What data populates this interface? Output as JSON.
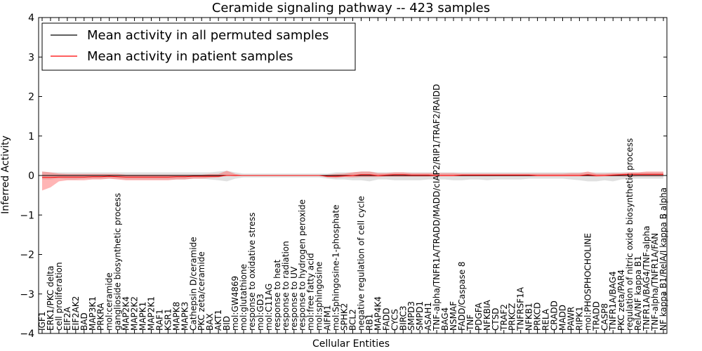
{
  "chart_data": {
    "type": "line",
    "title": "Ceramide signaling pathway -- 423 samples",
    "xlabel": "Cellular Entities",
    "ylabel": "Inferred Activity",
    "ylim": [
      -4,
      4
    ],
    "yticks": [
      -4,
      -3,
      -2,
      -1,
      0,
      1,
      2,
      3,
      4
    ],
    "legend_position": "top-left",
    "categories": [
      "IGF1",
      "ERK1/PKC delta",
      "cell proliferation",
      "EIF2A",
      "EIF2AK2",
      "BAD",
      "MAP3K1",
      "PRKRA",
      "mol:ceramide",
      "ganglioside biosynthetic process",
      "MAP2K4",
      "MAP2K2",
      "MAPK1",
      "MAP2K1",
      "RAF1",
      "KSR1",
      "MAPK8",
      "MAPK3",
      "Cathepsin D/ceramide",
      "PKC zeta/ceramide",
      "BAX",
      "AKT1",
      "BID",
      "mol:GW4869",
      "mol:glutathione",
      "response to oxidative stress",
      "mol:GD3",
      "mol:C11AG",
      "response to heat",
      "response to radiation",
      "response to UV",
      "response to hydrogen peroxide",
      "mol:free fatty acid",
      "mol:sphingosine",
      "AIFM1",
      "mol:Sphingosine-1-phosphate",
      "SPHK2",
      "BCL2",
      "negative regulation of cell cycle",
      "RB1",
      "MAP4K4",
      "FADD",
      "CYCS",
      "BIRC3",
      "SMPD3",
      "SMPD1",
      "ASAH1",
      "TNF-alpha/TNFR1A/TRADD/MADD/cIAP2/RIP1/TRAF2/RAIDD",
      "BAG4",
      "NSMAF",
      "FADD/Caspase 8",
      "TNF",
      "PDGFA",
      "NFKBIA",
      "CTSD",
      "TRAF2",
      "PRKCZ",
      "TNFRSF1A",
      "NFKB1",
      "PRKCD",
      "RELA",
      "CRADD",
      "MADD",
      "PAWR",
      "RIPK1",
      "mol:PHOSPHOCHOLINE",
      "TRADD",
      "CASP8",
      "TNFR1A/BAG4",
      "PKC zeta/PAR4",
      "regulation of nitric oxide biosynthetic process",
      "RelA/NF kappa B1",
      "TNFR1A/BAG4/TNF-alpha",
      "TNF-alpha/TNFR1A/FAN",
      "NF kappa B1/RelA/I kappa B alpha"
    ],
    "series": [
      {
        "name": "Mean activity in all permuted samples",
        "color": "#000000",
        "band_color": "#c8c8c8",
        "values": [
          0,
          0,
          0,
          0,
          0,
          0,
          0,
          0,
          0,
          0,
          0,
          0,
          0,
          0,
          0,
          0,
          0,
          0,
          0,
          0,
          0,
          0,
          0,
          0,
          0,
          0,
          0,
          0,
          0,
          0,
          0,
          0,
          0,
          0,
          0,
          0,
          0,
          0,
          0,
          0,
          0,
          0,
          0,
          0,
          0,
          0,
          0,
          0,
          0,
          0,
          0,
          0,
          0,
          0,
          0,
          0,
          0,
          0,
          0,
          0,
          0,
          0,
          0,
          0,
          0,
          0,
          0,
          0,
          0,
          0,
          0,
          0,
          0,
          0,
          0
        ],
        "lower": [
          -0.1,
          -0.1,
          -0.08,
          -0.1,
          -0.1,
          -0.08,
          -0.08,
          -0.08,
          -0.08,
          -0.08,
          -0.1,
          -0.1,
          -0.1,
          -0.1,
          -0.1,
          -0.1,
          -0.1,
          -0.1,
          -0.08,
          -0.08,
          -0.1,
          -0.12,
          -0.15,
          -0.08,
          -0.05,
          -0.05,
          -0.05,
          -0.05,
          -0.05,
          -0.05,
          -0.05,
          -0.05,
          -0.05,
          -0.05,
          -0.08,
          -0.1,
          -0.1,
          -0.12,
          -0.12,
          -0.15,
          -0.1,
          -0.1,
          -0.12,
          -0.12,
          -0.12,
          -0.12,
          -0.1,
          -0.1,
          -0.1,
          -0.12,
          -0.12,
          -0.1,
          -0.1,
          -0.12,
          -0.1,
          -0.1,
          -0.1,
          -0.1,
          -0.08,
          -0.08,
          -0.08,
          -0.08,
          -0.08,
          -0.1,
          -0.12,
          -0.15,
          -0.15,
          -0.12,
          -0.15,
          -0.1,
          -0.08,
          -0.08,
          -0.08,
          -0.08,
          -0.08
        ],
        "upper": [
          0.1,
          0.08,
          0.08,
          0.08,
          0.08,
          0.08,
          0.08,
          0.08,
          0.08,
          0.08,
          0.08,
          0.08,
          0.08,
          0.08,
          0.08,
          0.08,
          0.08,
          0.08,
          0.08,
          0.08,
          0.08,
          0.1,
          0.12,
          0.08,
          0.05,
          0.05,
          0.05,
          0.05,
          0.05,
          0.05,
          0.05,
          0.05,
          0.05,
          0.05,
          0.05,
          0.08,
          0.08,
          0.08,
          0.1,
          0.1,
          0.08,
          0.08,
          0.08,
          0.08,
          0.08,
          0.08,
          0.08,
          0.08,
          0.08,
          0.08,
          0.08,
          0.08,
          0.08,
          0.08,
          0.08,
          0.08,
          0.08,
          0.08,
          0.08,
          0.08,
          0.08,
          0.08,
          0.08,
          0.08,
          0.08,
          0.08,
          0.08,
          0.08,
          0.08,
          0.08,
          0.08,
          0.08,
          0.08,
          0.08,
          0.08
        ]
      },
      {
        "name": "Mean activity in patient samples",
        "color": "#ff0000",
        "band_color": "#ff5c5c",
        "values": [
          -0.05,
          -0.05,
          -0.04,
          -0.04,
          -0.04,
          -0.04,
          -0.03,
          -0.03,
          -0.02,
          -0.03,
          -0.04,
          -0.04,
          -0.04,
          -0.04,
          -0.04,
          -0.04,
          -0.03,
          -0.03,
          -0.02,
          -0.02,
          -0.02,
          -0.02,
          0.0,
          0.0,
          0.0,
          0.0,
          0.0,
          0.0,
          0.0,
          0.0,
          0.0,
          0.0,
          0.0,
          0.0,
          -0.02,
          -0.02,
          -0.01,
          0.0,
          0.02,
          0.02,
          0.0,
          0.01,
          0.02,
          0.02,
          0.01,
          0.01,
          0.01,
          0.0,
          0.0,
          0.0,
          0.01,
          0.01,
          0.01,
          0.01,
          0.01,
          0.01,
          0.01,
          0.01,
          0.01,
          0.0,
          0.0,
          0.0,
          0.0,
          0.0,
          0.0,
          0.02,
          0.0,
          0.0,
          0.01,
          0.02,
          0.03,
          0.03,
          0.03,
          0.03,
          0.03
        ],
        "lower": [
          -0.38,
          -0.3,
          -0.15,
          -0.12,
          -0.12,
          -0.12,
          -0.1,
          -0.1,
          -0.08,
          -0.1,
          -0.12,
          -0.12,
          -0.12,
          -0.12,
          -0.12,
          -0.12,
          -0.1,
          -0.1,
          -0.08,
          -0.08,
          -0.06,
          -0.05,
          0.0,
          -0.02,
          0.0,
          0.0,
          0.0,
          0.0,
          0.0,
          0.0,
          0.0,
          0.0,
          0.0,
          0.0,
          -0.05,
          -0.06,
          -0.04,
          -0.05,
          -0.04,
          -0.04,
          -0.04,
          -0.03,
          -0.03,
          -0.03,
          -0.03,
          -0.03,
          -0.03,
          -0.02,
          -0.02,
          -0.02,
          -0.02,
          -0.02,
          -0.02,
          -0.02,
          -0.02,
          -0.02,
          -0.02,
          -0.02,
          -0.02,
          -0.02,
          -0.02,
          -0.02,
          -0.02,
          -0.02,
          -0.02,
          -0.02,
          -0.03,
          -0.02,
          -0.02,
          -0.02,
          -0.03,
          -0.02,
          -0.02,
          -0.02,
          -0.02
        ],
        "upper": [
          0.1,
          0.08,
          0.05,
          0.04,
          0.04,
          0.04,
          0.04,
          0.04,
          0.04,
          0.04,
          0.02,
          0.02,
          0.02,
          0.02,
          0.02,
          0.02,
          0.02,
          0.02,
          0.02,
          0.02,
          0.04,
          0.04,
          0.12,
          0.04,
          0.0,
          0.0,
          0.0,
          0.0,
          0.0,
          0.0,
          0.0,
          0.0,
          0.0,
          0.0,
          0.02,
          0.04,
          0.05,
          0.08,
          0.1,
          0.1,
          0.06,
          0.06,
          0.08,
          0.08,
          0.06,
          0.06,
          0.06,
          0.06,
          0.06,
          0.06,
          0.05,
          0.05,
          0.05,
          0.05,
          0.05,
          0.05,
          0.05,
          0.05,
          0.05,
          0.05,
          0.05,
          0.05,
          0.05,
          0.06,
          0.06,
          0.1,
          0.05,
          0.05,
          0.06,
          0.06,
          0.08,
          0.08,
          0.1,
          0.1,
          0.1
        ]
      }
    ]
  }
}
